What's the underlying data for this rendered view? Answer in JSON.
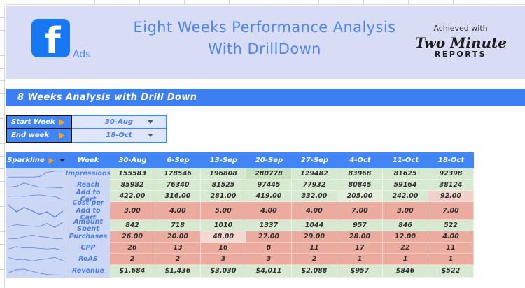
{
  "colors": {
    "banner_bg": "#d9dcf5",
    "title_color": "#4e87f2",
    "fb_blue": "#1877f2",
    "bar_blue": "#3d7ef0",
    "header_blue": "#4285f4",
    "label_bg": "#ccd7f6",
    "label_blue": "#4a7de0",
    "orange": "#f6a21c",
    "green_cell": "#d8e9d1",
    "red_cell": "#ecab9f",
    "spark_line": "#5b84d9"
  },
  "banner": {
    "logo_letter": "f",
    "logo_sub": "Ads",
    "title_line1": "Eight Weeks Performance Analysis",
    "title_line2": "With DrillDown",
    "badge_tagline": "Achieved with",
    "badge_brand": "Two Minute",
    "badge_reports": "REPORTS"
  },
  "section_bar": {
    "label": "8 Weeks Analysis with Drill Down"
  },
  "filters": [
    {
      "label": "Start Week",
      "value": "30-Aug"
    },
    {
      "label": "End week",
      "value": "18-Oct"
    }
  ],
  "table": {
    "header": {
      "sparkline": "Sparkline",
      "week": "Week",
      "dates": [
        "30-Aug",
        "6-Sep",
        "13-Sep",
        "20-Sep",
        "27-Sep",
        "4-Oct",
        "11-Oct",
        "18-Oct"
      ]
    },
    "rows": [
      {
        "metric": "Impressions",
        "tone": "green",
        "values": [
          "155583",
          "178546",
          "196808",
          "280778",
          "129482",
          "83968",
          "81625",
          "92398"
        ],
        "spark": [
          0.15,
          0.15,
          0.15,
          0.15,
          0.2,
          0.72,
          0.85,
          0.85
        ]
      },
      {
        "metric": "Reach",
        "tone": "green",
        "values": [
          "85982",
          "76340",
          "81525",
          "97445",
          "77932",
          "80845",
          "59164",
          "38124"
        ],
        "spark": [
          0.28,
          0.38,
          0.78,
          0.5,
          0.3,
          0.26,
          0.24,
          0.2
        ]
      },
      {
        "metric": "Add to Cart",
        "tone": "green",
        "values": [
          "422.00",
          "316.00",
          "281.00",
          "419.00",
          "332.00",
          "205.00",
          "242.00",
          "92.00"
        ],
        "spark": [
          0.5,
          0.56,
          0.5,
          0.62,
          0.68,
          0.55,
          0.48,
          0.15
        ]
      },
      {
        "metric": "Cost per Add to Cart",
        "tone": "red",
        "values": [
          "3.00",
          "4.00",
          "5.00",
          "4.00",
          "4.00",
          "7.00",
          "3.00",
          "7.00"
        ],
        "spark": [
          0.9,
          0.45,
          0.75,
          0.52,
          0.28,
          0.45,
          0.08,
          0.5
        ]
      },
      {
        "metric": "Amount Spent",
        "tone": "green",
        "values": [
          "842",
          "718",
          "1010",
          "1337",
          "1044",
          "957",
          "846",
          "522"
        ],
        "spark": [
          0.42,
          0.62,
          0.52,
          0.46,
          0.42,
          0.78,
          0.3,
          0.9
        ]
      },
      {
        "metric": "Purchases",
        "tone": "red",
        "values": [
          "26.00",
          "20.00",
          "48.00",
          "27.00",
          "29.00",
          "28.00",
          "12.00",
          "4.00"
        ],
        "spark": [
          0.32,
          0.3,
          0.52,
          0.72,
          0.56,
          0.46,
          0.3,
          0.26
        ]
      },
      {
        "metric": "CPP",
        "tone": "red",
        "values": [
          "26",
          "13",
          "16",
          "8",
          "11",
          "17",
          "22",
          "11"
        ],
        "spark": [
          0.4,
          0.68,
          0.52,
          0.56,
          0.46,
          0.4,
          0.46,
          0.26
        ]
      },
      {
        "metric": "RoAS",
        "tone": "red",
        "values": [
          "2",
          "2",
          "3",
          "3",
          "2",
          "1",
          "1",
          "1"
        ],
        "spark": [
          0.7,
          0.46,
          0.5,
          0.3,
          0.46,
          0.56,
          0.72,
          0.36
        ]
      },
      {
        "metric": "Revenue",
        "tone": "green",
        "values": [
          "$1,684",
          "$1,436",
          "$3,030",
          "$4,011",
          "$2,088",
          "$957",
          "$846",
          "$522"
        ],
        "spark": [
          0.35,
          0.66,
          0.72,
          0.5,
          0.3,
          0.16,
          0.12,
          0.12
        ]
      }
    ],
    "cell_overrides": [
      {
        "row": 0,
        "col": 3,
        "bg": "#c9e0c1"
      },
      {
        "row": 2,
        "col": 5,
        "bg": "#e3eedb"
      },
      {
        "row": 2,
        "col": 7,
        "bg": "#f1d2cb"
      },
      {
        "row": 5,
        "col": 2,
        "bg": "#f5d8d3"
      }
    ]
  }
}
